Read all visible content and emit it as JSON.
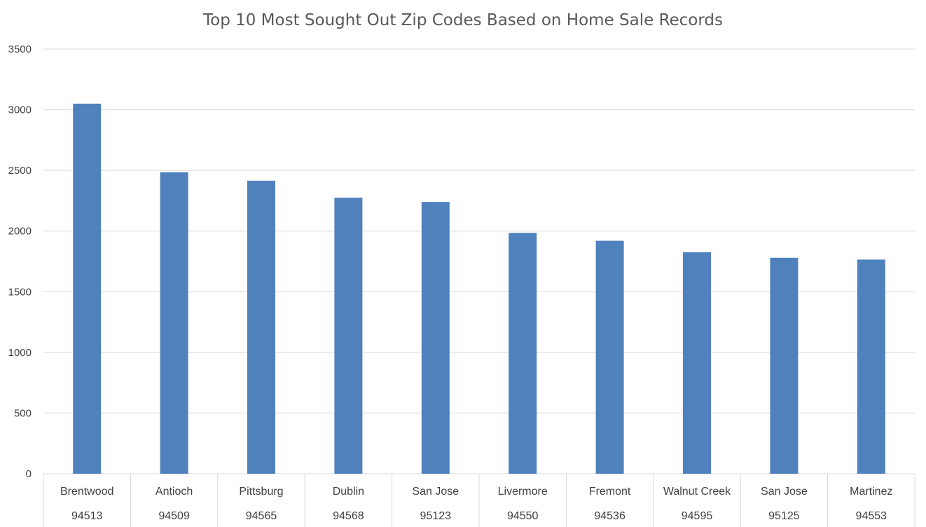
{
  "chart_data": {
    "type": "bar",
    "title": "Top 10 Most Sought Out Zip Codes Based on Home Sale Records",
    "xlabel": "",
    "ylabel": "",
    "ylim": [
      0,
      3500
    ],
    "yticks": [
      0,
      500,
      1000,
      1500,
      2000,
      2500,
      3000,
      3500
    ],
    "grid": true,
    "categories": [
      {
        "city": "Brentwood",
        "zip": "94513"
      },
      {
        "city": "Antioch",
        "zip": "94509"
      },
      {
        "city": "Pittsburg",
        "zip": "94565"
      },
      {
        "city": "Dublin",
        "zip": "94568"
      },
      {
        "city": "San Jose",
        "zip": "95123"
      },
      {
        "city": "Livermore",
        "zip": "94550"
      },
      {
        "city": "Fremont",
        "zip": "94536"
      },
      {
        "city": "Walnut Creek",
        "zip": "94595"
      },
      {
        "city": "San Jose",
        "zip": "95125"
      },
      {
        "city": "Martinez",
        "zip": "94553"
      }
    ],
    "values": [
      3050,
      2485,
      2415,
      2275,
      2240,
      1985,
      1920,
      1825,
      1780,
      1765
    ],
    "colors": {
      "bar": "#4f81bd",
      "grid": "#d9d9d9",
      "text": "#404040"
    }
  }
}
